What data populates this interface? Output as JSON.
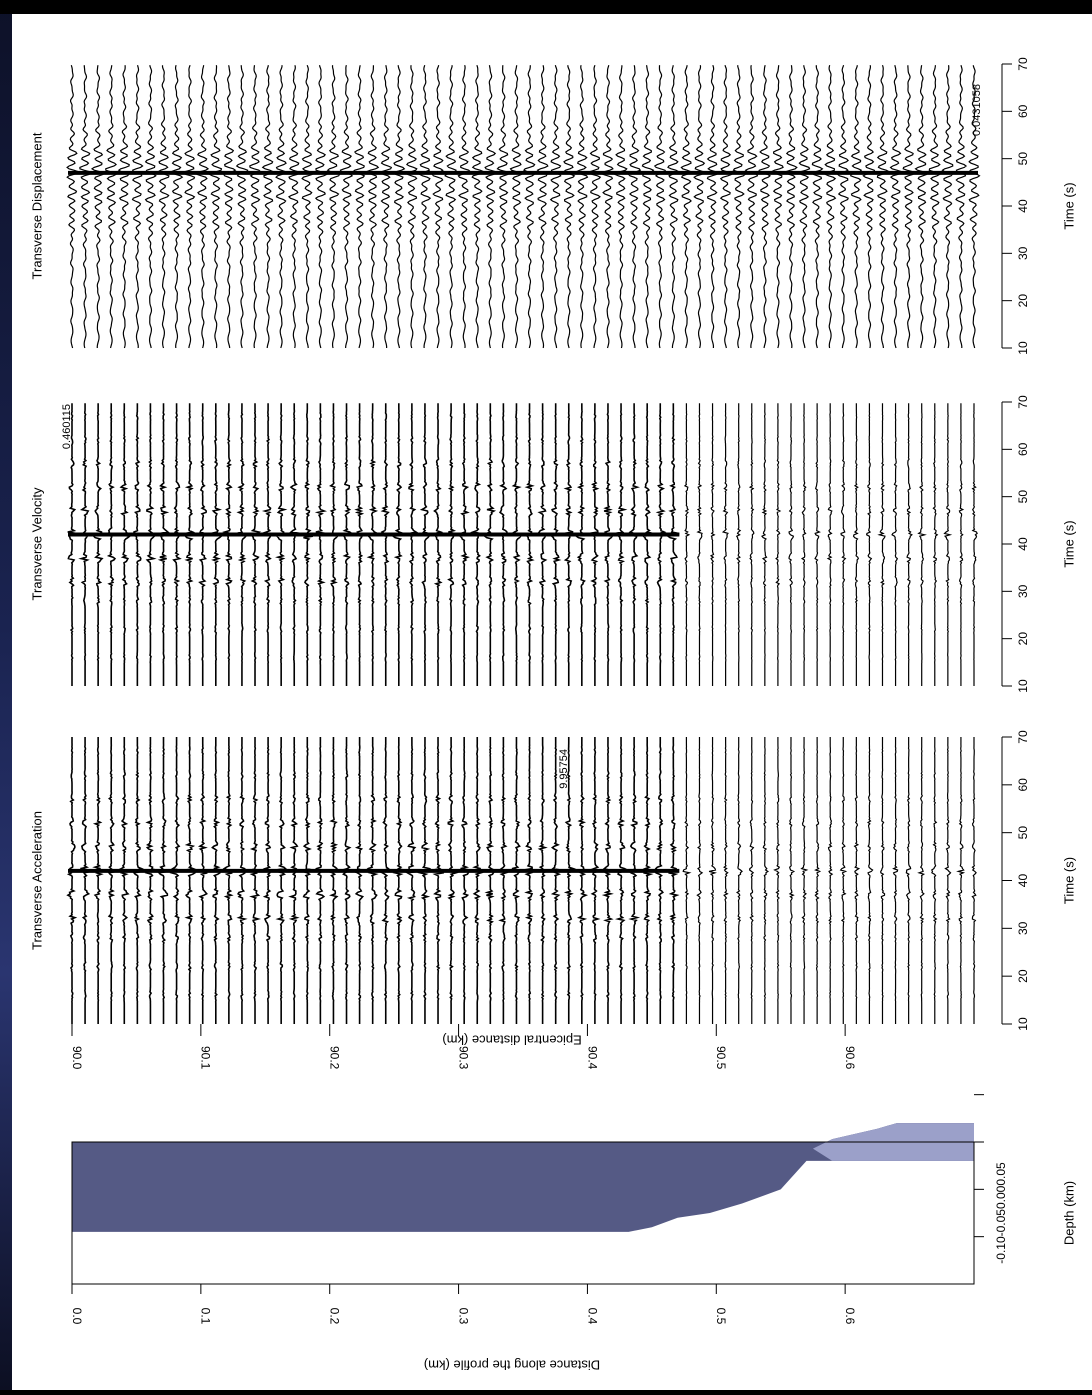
{
  "chart_data": [
    {
      "type": "line",
      "title": "Transverse Acceleration",
      "xlabel": "Time (s)",
      "ylabel": "Epicentral distance (km)",
      "xlim": [
        10,
        70
      ],
      "x_ticks": [
        "10",
        "20",
        "30",
        "40",
        "50",
        "60",
        "70"
      ],
      "ylim": [
        90.0,
        90.7
      ],
      "y_ticks": [
        "90.0",
        "90.1",
        "90.2",
        "90.3",
        "90.4",
        "90.5",
        "90.6"
      ],
      "trace_count": 70,
      "amplitude_label": "9.95754",
      "series": [
        {
          "values": [
            {
              "t": 16,
              "a": 0.15
            },
            {
              "t": 22,
              "a": 0.2
            },
            {
              "t": 28,
              "a": 0.25
            },
            {
              "t": 32,
              "a": 0.5
            },
            {
              "t": 37,
              "a": 0.65
            },
            {
              "t": 42,
              "a": 1.0
            },
            {
              "t": 47,
              "a": 0.55
            },
            {
              "t": 52,
              "a": 0.45
            },
            {
              "t": 57,
              "a": 0.3
            },
            {
              "t": 62,
              "a": 0.15
            },
            {
              "t": 67,
              "a": 0.1
            }
          ]
        }
      ]
    },
    {
      "type": "line",
      "title": "Transverse Velocity",
      "xlabel": "Time (s)",
      "xlim": [
        10,
        70
      ],
      "x_ticks": [
        "10",
        "20",
        "30",
        "40",
        "50",
        "60",
        "70"
      ],
      "trace_count": 70,
      "amplitude_label": "0.460115",
      "series": [
        {
          "values": [
            {
              "t": 16,
              "a": 0.1
            },
            {
              "t": 22,
              "a": 0.15
            },
            {
              "t": 28,
              "a": 0.2
            },
            {
              "t": 32,
              "a": 0.45
            },
            {
              "t": 37,
              "a": 0.6
            },
            {
              "t": 42,
              "a": 1.0
            },
            {
              "t": 47,
              "a": 0.6
            },
            {
              "t": 52,
              "a": 0.5
            },
            {
              "t": 57,
              "a": 0.3
            },
            {
              "t": 62,
              "a": 0.15
            },
            {
              "t": 67,
              "a": 0.1
            }
          ]
        }
      ]
    },
    {
      "type": "line",
      "title": "Transverse Displacement",
      "xlabel": "Time (s)",
      "xlim": [
        10,
        70
      ],
      "x_ticks": [
        "10",
        "20",
        "30",
        "40",
        "50",
        "60",
        "70"
      ],
      "trace_count": 70,
      "amplitude_label": "0.0431058",
      "series": [
        {
          "values": [
            {
              "t": 16,
              "a": 0.05
            },
            {
              "t": 22,
              "a": 0.08
            },
            {
              "t": 28,
              "a": 0.12
            },
            {
              "t": 33,
              "a": 0.2
            },
            {
              "t": 37,
              "a": 0.55
            },
            {
              "t": 42,
              "a": 0.8
            },
            {
              "t": 47,
              "a": 1.0
            },
            {
              "t": 51,
              "a": 0.7
            },
            {
              "t": 56,
              "a": 0.3
            },
            {
              "t": 62,
              "a": 0.15
            },
            {
              "t": 67,
              "a": 0.1
            }
          ]
        }
      ]
    },
    {
      "type": "area",
      "xlabel": "Distance along the profile (km)",
      "ylabel": "Depth (km)",
      "xlim": [
        0.0,
        0.7
      ],
      "x_ticks": [
        "0.0",
        "0.1",
        "0.2",
        "0.3",
        "0.4",
        "0.5",
        "0.6"
      ],
      "ylim": [
        -0.1,
        0.05
      ],
      "y_ticks": [
        "0.05",
        "0.00",
        "-0.05",
        "-0.10"
      ],
      "colors": {
        "deep_layer": "#555a85",
        "middle_layer": "#454a78",
        "top_layer": "#9ba0c9"
      },
      "series": [
        {
          "values": [
            [
              0.0,
              0.0
            ],
            [
              0.01,
              0.0
            ],
            [
              0.225,
              0.0
            ],
            [
              0.23,
              0.01
            ],
            [
              0.26,
              0.01
            ],
            [
              0.265,
              0.0
            ],
            [
              0.425,
              0.0
            ],
            [
              0.43,
              -0.002
            ],
            [
              0.49,
              -0.002
            ],
            [
              0.495,
              -0.013
            ],
            [
              0.51,
              -0.022
            ],
            [
              0.53,
              -0.032
            ],
            [
              0.55,
              -0.04
            ],
            [
              0.575,
              -0.043
            ],
            [
              0.59,
              -0.053
            ],
            [
              0.625,
              -0.064
            ],
            [
              0.64,
              -0.07
            ],
            [
              0.7,
              -0.07
            ]
          ]
        },
        {
          "values": [
            [
              0.0,
              0.045
            ],
            [
              0.432,
              0.045
            ],
            [
              0.45,
              0.04
            ],
            [
              0.47,
              0.03
            ],
            [
              0.495,
              0.025
            ],
            [
              0.52,
              0.015
            ],
            [
              0.55,
              0.0
            ],
            [
              0.57,
              -0.03
            ],
            [
              0.59,
              -0.03
            ],
            [
              0.7,
              -0.03
            ]
          ]
        }
      ]
    }
  ]
}
